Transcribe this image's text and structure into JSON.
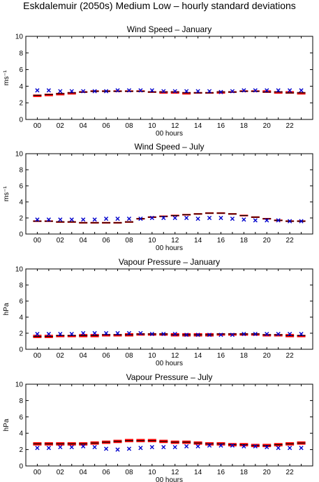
{
  "page_title": "Eskdalemuir (2050s) Medium Low – hourly standard deviations",
  "colors": {
    "observed": "#0000cc",
    "range_fill": "#ff0000",
    "mean_line": "#000000"
  },
  "legend_note": "",
  "chart_data": [
    {
      "type": "scatter",
      "title": "Wind Speed – January",
      "xlabel": "00 hours",
      "ylabel": "ms⁻¹",
      "ylim": [
        0,
        10
      ],
      "xlim": [
        -1,
        24
      ],
      "yticks": [
        0,
        2,
        4,
        6,
        8,
        10
      ],
      "xticks": [
        "00",
        "02",
        "04",
        "06",
        "08",
        "10",
        "12",
        "14",
        "16",
        "18",
        "20",
        "22"
      ],
      "grid": false,
      "hours": [
        0,
        1,
        2,
        3,
        4,
        5,
        6,
        7,
        8,
        9,
        10,
        11,
        12,
        13,
        14,
        15,
        16,
        17,
        18,
        19,
        20,
        21,
        22,
        23
      ],
      "series": [
        {
          "name": "",
          "kind": "observed",
          "values": [
            3.5,
            3.5,
            3.4,
            3.4,
            3.4,
            3.4,
            3.4,
            3.5,
            3.5,
            3.5,
            3.5,
            3.4,
            3.4,
            3.4,
            3.4,
            3.4,
            3.3,
            3.4,
            3.5,
            3.5,
            3.5,
            3.5,
            3.5,
            3.5
          ]
        },
        {
          "name": "",
          "kind": "projected-range",
          "low": [
            2.7,
            2.8,
            2.9,
            3.0,
            3.2,
            3.3,
            3.3,
            3.3,
            3.3,
            3.3,
            3.2,
            3.1,
            3.1,
            3.0,
            3.1,
            3.1,
            3.1,
            3.2,
            3.3,
            3.3,
            3.2,
            3.1,
            3.1,
            3.0
          ],
          "mean": [
            2.9,
            3.0,
            3.1,
            3.2,
            3.3,
            3.4,
            3.4,
            3.4,
            3.4,
            3.4,
            3.3,
            3.3,
            3.3,
            3.2,
            3.2,
            3.2,
            3.3,
            3.3,
            3.4,
            3.4,
            3.3,
            3.3,
            3.2,
            3.2
          ],
          "high": [
            3.0,
            3.1,
            3.2,
            3.3,
            3.4,
            3.5,
            3.5,
            3.5,
            3.5,
            3.5,
            3.4,
            3.4,
            3.4,
            3.3,
            3.3,
            3.3,
            3.4,
            3.4,
            3.5,
            3.5,
            3.5,
            3.4,
            3.4,
            3.3
          ]
        }
      ]
    },
    {
      "type": "scatter",
      "title": "Wind Speed – July",
      "xlabel": "00 hours",
      "ylabel": "ms⁻¹",
      "ylim": [
        0,
        10
      ],
      "xlim": [
        -1,
        24
      ],
      "yticks": [
        0,
        2,
        4,
        6,
        8,
        10
      ],
      "xticks": [
        "00",
        "02",
        "04",
        "06",
        "08",
        "10",
        "12",
        "14",
        "16",
        "18",
        "20",
        "22"
      ],
      "grid": false,
      "hours": [
        0,
        1,
        2,
        3,
        4,
        5,
        6,
        7,
        8,
        9,
        10,
        11,
        12,
        13,
        14,
        15,
        16,
        17,
        18,
        19,
        20,
        21,
        22,
        23
      ],
      "series": [
        {
          "name": "",
          "kind": "observed",
          "values": [
            1.8,
            1.8,
            1.8,
            1.8,
            1.8,
            1.8,
            1.9,
            1.9,
            1.9,
            1.9,
            2.0,
            2.0,
            2.0,
            2.0,
            1.9,
            2.0,
            2.0,
            1.9,
            1.8,
            1.7,
            1.7,
            1.7,
            1.6,
            1.6
          ]
        },
        {
          "name": "",
          "kind": "projected-range",
          "low": [
            1.5,
            1.5,
            1.4,
            1.4,
            1.3,
            1.3,
            1.3,
            1.3,
            1.4,
            1.8,
            2.0,
            2.1,
            2.2,
            2.3,
            2.4,
            2.5,
            2.5,
            2.4,
            2.2,
            2.0,
            1.8,
            1.6,
            1.5,
            1.5
          ],
          "mean": [
            1.6,
            1.6,
            1.5,
            1.5,
            1.4,
            1.4,
            1.4,
            1.4,
            1.5,
            1.9,
            2.1,
            2.2,
            2.3,
            2.4,
            2.5,
            2.6,
            2.6,
            2.5,
            2.3,
            2.1,
            1.9,
            1.7,
            1.6,
            1.6
          ],
          "high": [
            1.7,
            1.7,
            1.6,
            1.6,
            1.5,
            1.5,
            1.5,
            1.5,
            1.6,
            2.0,
            2.2,
            2.3,
            2.4,
            2.5,
            2.6,
            2.7,
            2.7,
            2.6,
            2.4,
            2.2,
            2.0,
            1.8,
            1.7,
            1.7
          ]
        }
      ]
    },
    {
      "type": "scatter",
      "title": "Vapour Pressure – January",
      "xlabel": "00 hours",
      "ylabel": "hPa",
      "ylim": [
        0,
        10
      ],
      "xlim": [
        -1,
        24
      ],
      "yticks": [
        0,
        2,
        4,
        6,
        8,
        10
      ],
      "xticks": [
        "00",
        "02",
        "04",
        "06",
        "08",
        "10",
        "12",
        "14",
        "16",
        "18",
        "20",
        "22"
      ],
      "grid": false,
      "hours": [
        0,
        1,
        2,
        3,
        4,
        5,
        6,
        7,
        8,
        9,
        10,
        11,
        12,
        13,
        14,
        15,
        16,
        17,
        18,
        19,
        20,
        21,
        22,
        23
      ],
      "series": [
        {
          "name": "",
          "kind": "observed",
          "values": [
            1.9,
            1.9,
            1.9,
            1.9,
            2.0,
            2.0,
            2.0,
            2.0,
            2.0,
            2.0,
            1.9,
            1.9,
            1.9,
            1.8,
            1.8,
            1.8,
            1.8,
            1.8,
            1.9,
            1.9,
            1.9,
            1.9,
            1.9,
            1.9
          ]
        },
        {
          "name": "",
          "kind": "projected-range",
          "low": [
            1.4,
            1.4,
            1.5,
            1.5,
            1.5,
            1.5,
            1.6,
            1.6,
            1.6,
            1.7,
            1.7,
            1.7,
            1.6,
            1.6,
            1.6,
            1.6,
            1.7,
            1.7,
            1.7,
            1.7,
            1.6,
            1.6,
            1.5,
            1.5
          ],
          "mean": [
            1.6,
            1.6,
            1.7,
            1.7,
            1.7,
            1.7,
            1.8,
            1.8,
            1.8,
            1.9,
            1.9,
            1.9,
            1.8,
            1.8,
            1.8,
            1.8,
            1.9,
            1.9,
            1.9,
            1.9,
            1.8,
            1.8,
            1.7,
            1.7
          ],
          "high": [
            1.8,
            1.8,
            1.8,
            1.8,
            1.9,
            1.9,
            1.9,
            1.9,
            2.0,
            2.0,
            2.0,
            2.0,
            2.0,
            2.0,
            2.0,
            2.0,
            2.0,
            2.0,
            2.0,
            2.0,
            1.9,
            1.9,
            1.9,
            1.8
          ]
        }
      ]
    },
    {
      "type": "scatter",
      "title": "Vapour Pressure – July",
      "xlabel": "00 hours",
      "ylabel": "hPa",
      "ylim": [
        0,
        10
      ],
      "xlim": [
        -1,
        24
      ],
      "yticks": [
        0,
        2,
        4,
        6,
        8,
        10
      ],
      "xticks": [
        "00",
        "02",
        "04",
        "06",
        "08",
        "10",
        "12",
        "14",
        "16",
        "18",
        "20",
        "22"
      ],
      "grid": false,
      "hours": [
        0,
        1,
        2,
        3,
        4,
        5,
        6,
        7,
        8,
        9,
        10,
        11,
        12,
        13,
        14,
        15,
        16,
        17,
        18,
        19,
        20,
        21,
        22,
        23
      ],
      "series": [
        {
          "name": "",
          "kind": "observed",
          "values": [
            2.2,
            2.2,
            2.3,
            2.3,
            2.4,
            2.3,
            2.1,
            2.0,
            2.1,
            2.2,
            2.3,
            2.3,
            2.3,
            2.4,
            2.4,
            2.5,
            2.5,
            2.5,
            2.4,
            2.4,
            2.3,
            2.2,
            2.2,
            2.2
          ]
        },
        {
          "name": "",
          "kind": "projected-range",
          "low": [
            2.5,
            2.5,
            2.5,
            2.5,
            2.5,
            2.6,
            2.7,
            2.8,
            2.9,
            2.9,
            2.9,
            2.8,
            2.7,
            2.7,
            2.6,
            2.5,
            2.5,
            2.4,
            2.4,
            2.3,
            2.3,
            2.4,
            2.5,
            2.6
          ],
          "mean": [
            2.7,
            2.7,
            2.7,
            2.7,
            2.7,
            2.8,
            2.9,
            3.0,
            3.1,
            3.1,
            3.1,
            3.0,
            2.9,
            2.9,
            2.8,
            2.7,
            2.7,
            2.6,
            2.6,
            2.5,
            2.5,
            2.6,
            2.7,
            2.8
          ],
          "high": [
            2.9,
            2.9,
            2.9,
            2.9,
            2.9,
            3.0,
            3.1,
            3.2,
            3.3,
            3.3,
            3.3,
            3.2,
            3.1,
            3.1,
            3.0,
            2.9,
            2.9,
            2.8,
            2.8,
            2.7,
            2.7,
            2.8,
            2.9,
            3.0
          ]
        }
      ]
    }
  ]
}
